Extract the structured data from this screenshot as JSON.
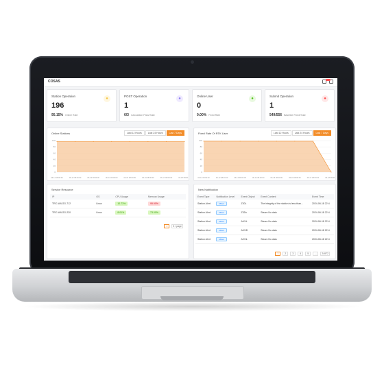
{
  "app": {
    "title": "COSAS"
  },
  "colors": {
    "accent": "#f28c28",
    "alert_red": "#ff4d4f",
    "success_green": "#389e0d"
  },
  "stats": [
    {
      "label": "Station Operation",
      "value": "196",
      "sub_value": "95.15%",
      "sub_label": "Online Rate",
      "icon": "map-pin-icon",
      "icon_color": "#f5c542"
    },
    {
      "label": "POST Operation",
      "value": "1",
      "sub_value": "0/3",
      "sub_label": "Calculation Pass/Total",
      "icon": "database-icon",
      "icon_color": "#8c7cf0"
    },
    {
      "label": "Online User",
      "value": "0",
      "sub_value": "0.00%",
      "sub_label": "Fixed Rate",
      "icon": "user-icon",
      "icon_color": "#52c41a"
    },
    {
      "label": "Submit Operation",
      "value": "1",
      "sub_value": "549/556",
      "sub_label": "Baseline Fixed/Total",
      "icon": "list-icon",
      "icon_color": "#ff4d4f"
    }
  ],
  "time_tabs": [
    "Last 12 Hours",
    "Last 24 Hours",
    "Last 7 Days"
  ],
  "charts": [
    {
      "title": "Online Stations",
      "active_tab": "Last 7 Days"
    },
    {
      "title": "Fixed Rate Of RTK User",
      "active_tab": "Last 7 Days"
    }
  ],
  "chart_data": [
    {
      "type": "area",
      "title": "Online Stations",
      "x": [
        "06-11 08:00:00",
        "06-12 08:00:00",
        "06-13 08:00:00",
        "06-14 08:00:00",
        "06-15 08:00:00",
        "06-16 08:00:00",
        "06-17 08:00:00",
        "06-18 08:00:00"
      ],
      "series": [
        {
          "values": [
            97,
            97,
            97,
            97,
            97,
            97,
            97,
            97
          ]
        }
      ],
      "ylim": [
        0,
        100
      ],
      "yticks": [
        "0",
        "20",
        "40",
        "60",
        "80",
        "100"
      ],
      "grid": true
    },
    {
      "type": "area",
      "title": "Fixed Rate Of RTK User",
      "x": [
        "06-11 08:00:00",
        "06-12 08:00:00",
        "06-13 08:00:00",
        "06-14 08:00:00",
        "06-15 08:00:00",
        "06-16 08:00:00",
        "06-17 08:00:00",
        "06-18 08:00:00"
      ],
      "series": [
        {
          "values": [
            98,
            98,
            98,
            98,
            98,
            98,
            98,
            0
          ]
        }
      ],
      "ylim": [
        0,
        100
      ],
      "yticks": [
        "0",
        "20",
        "40",
        "60",
        "80",
        "100"
      ],
      "grid": true
    }
  ],
  "service_resource": {
    "title": "Service Resource",
    "columns": [
      "IP",
      "OS",
      "CPU Usage",
      "Memory Usage"
    ],
    "rows": [
      {
        "ip": "TRC-WILGG-712",
        "os": "Linux",
        "cpu": "10.73%",
        "mem": "95.90%"
      },
      {
        "ip": "TRC-WILGG-220",
        "os": "Linux",
        "cpu": "8.01%",
        "mem": "73.00%"
      }
    ],
    "pager": {
      "page": "1",
      "page_size": "5 / page"
    }
  },
  "notifications": {
    "title": "New Notification",
    "columns": [
      "Event Type",
      "Notification Level",
      "Event Object",
      "Event Content",
      "Event Time"
    ],
    "rows": [
      {
        "type": "Station Alert",
        "level": "Minor",
        "object": "Z30L",
        "content": "The integrity of the station is less than...",
        "time": "2024-06-18 22:4"
      },
      {
        "type": "Station Alert",
        "level": "Minor",
        "object": "Z3Dx",
        "content": "Steam No data",
        "time": "2024-06-18 22:4"
      },
      {
        "type": "Station Alert",
        "level": "Minor",
        "object": "AHXL",
        "content": "Steam No data",
        "time": "2024-06-18 22:4"
      },
      {
        "type": "Station Alert",
        "level": "Minor",
        "object": "AHXD",
        "content": "Steam No data",
        "time": "2024-06-18 22:4"
      },
      {
        "type": "Station Alert",
        "level": "Minor",
        "object": "AHXk",
        "content": "Steam No data",
        "time": "2024-06-18 22:4"
      }
    ],
    "pager": {
      "pages": [
        "1",
        "2",
        "3",
        "4",
        "5",
        "...",
        "24972"
      ]
    }
  }
}
